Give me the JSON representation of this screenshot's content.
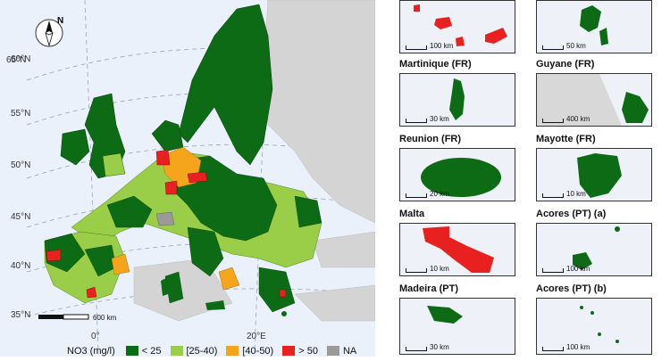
{
  "main_map": {
    "lat_labels": [
      "65°N",
      "60°N",
      "55°N",
      "50°N",
      "45°N",
      "40°N",
      "35°N"
    ],
    "lon_labels": [
      "0°",
      "20°E"
    ],
    "scale_label": "600 km",
    "north_label": "N"
  },
  "legend": {
    "title": "NO3 (mg/l)",
    "items": [
      {
        "label": "< 25",
        "color": "#0c6b14"
      },
      {
        "label": "[25-40)",
        "color": "#9acd48"
      },
      {
        "label": "[40-50)",
        "color": "#f5a51c"
      },
      {
        "label": "> 50",
        "color": "#e8201f"
      },
      {
        "label": "NA",
        "color": "#9a9a9a"
      }
    ]
  },
  "insets": [
    {
      "title": "",
      "scale": "100 km"
    },
    {
      "title": "",
      "scale": "50 km"
    },
    {
      "title": "Martinique (FR)",
      "scale": "30 km"
    },
    {
      "title": "Guyane (FR)",
      "scale": "400 km"
    },
    {
      "title": "Reunion (FR)",
      "scale": "20 km"
    },
    {
      "title": "Mayotte (FR)",
      "scale": "10 km"
    },
    {
      "title": "Malta",
      "scale": "10 km"
    },
    {
      "title": "Acores (PT) (a)",
      "scale": "100 km"
    },
    {
      "title": "Madeira (PT)",
      "scale": "30 km"
    },
    {
      "title": "Acores (PT) (b)",
      "scale": "100 km"
    }
  ]
}
